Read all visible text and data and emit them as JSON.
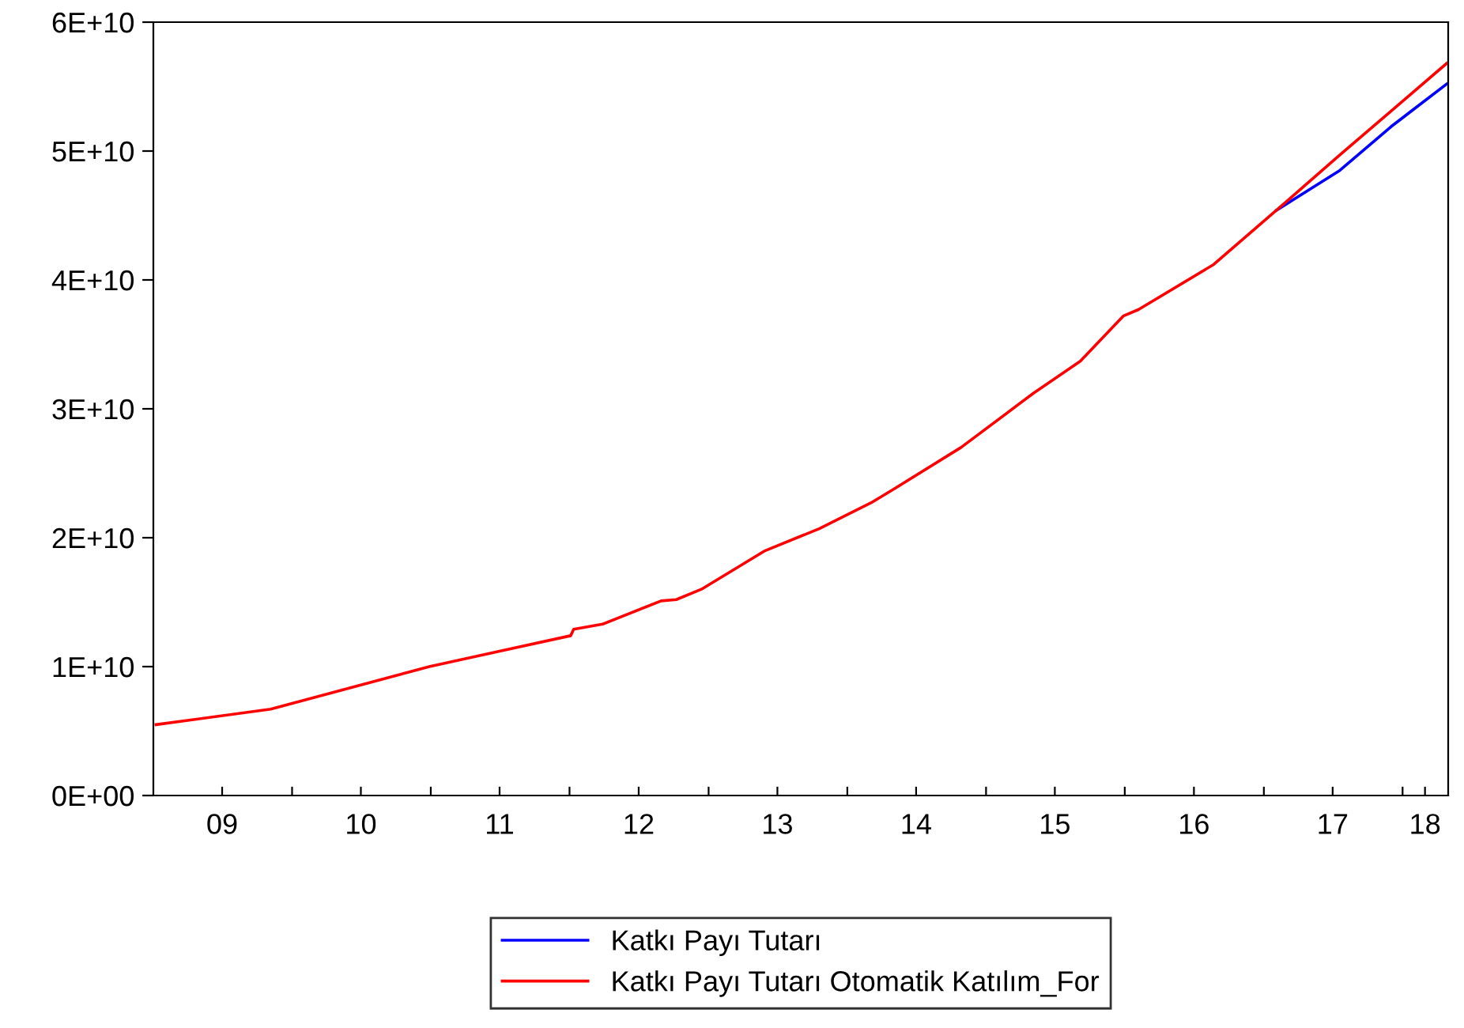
{
  "chart_data": {
    "type": "line",
    "x": [
      "2009-01-08",
      "2009-11-06",
      "2010-12-28",
      "2011-07-01",
      "2012-01-04",
      "2012-01-12",
      "2012-03-28",
      "2012-08-29",
      "2012-10-08",
      "2012-12-13",
      "2013-05-30",
      "2013-10-19",
      "2014-03-04",
      "2014-05-05",
      "2014-10-27",
      "2015-05-05",
      "2015-09-06",
      "2015-12-28",
      "2016-02-06",
      "2016-08-22",
      "2017-02-03",
      "2017-07-20",
      "2017-12-02",
      "2018-04-27"
    ],
    "series": [
      {
        "name": "Katkı Payı Tutarı",
        "color": "#0000ff",
        "values": [
          null,
          null,
          null,
          null,
          null,
          null,
          null,
          null,
          null,
          null,
          null,
          null,
          null,
          null,
          null,
          null,
          null,
          null,
          null,
          null,
          45400000000.0,
          48500000000.0,
          51900000000.0,
          55200000000.0
        ]
      },
      {
        "name": "Katkı Payı Tutarı Otomatik Katılım_For",
        "color": "#ff0000",
        "values": [
          5500000000.0,
          6700000000.0,
          10000000000.0,
          11200000000.0,
          12400000000.0,
          12900000000.0,
          13300000000.0,
          15100000000.0,
          15200000000.0,
          16000000000.0,
          19000000000.0,
          20700000000.0,
          22700000000.0,
          23800000000.0,
          27000000000.0,
          31200000000.0,
          33700000000.0,
          37200000000.0,
          37700000000.0,
          41200000000.0,
          45400000000.0,
          49700000000.0,
          53100000000.0,
          56800000000.0
        ]
      }
    ],
    "xlim": [
      "2009-01-01",
      "2018-05-01"
    ],
    "xticks": [
      {
        "value": "2009-07-01",
        "label": "09"
      },
      {
        "value": "2010-01-01",
        "label": null
      },
      {
        "value": "2010-07-01",
        "label": "10"
      },
      {
        "value": "2011-01-01",
        "label": null
      },
      {
        "value": "2011-07-01",
        "label": "11"
      },
      {
        "value": "2012-01-01",
        "label": null
      },
      {
        "value": "2012-07-01",
        "label": "12"
      },
      {
        "value": "2013-01-01",
        "label": null
      },
      {
        "value": "2013-07-01",
        "label": "13"
      },
      {
        "value": "2014-01-01",
        "label": null
      },
      {
        "value": "2014-07-01",
        "label": "14"
      },
      {
        "value": "2015-01-01",
        "label": null
      },
      {
        "value": "2015-07-01",
        "label": "15"
      },
      {
        "value": "2016-01-01",
        "label": null
      },
      {
        "value": "2016-07-01",
        "label": "16"
      },
      {
        "value": "2017-01-01",
        "label": null
      },
      {
        "value": "2017-07-01",
        "label": "17"
      },
      {
        "value": "2018-01-01",
        "label": null
      },
      {
        "value": "2018-03-01",
        "label": "18"
      }
    ],
    "ylim": [
      0,
      60000000000.0
    ],
    "yticks": [
      {
        "value": 0,
        "label": "0E+00"
      },
      {
        "value": 10000000000.0,
        "label": "1E+10"
      },
      {
        "value": 20000000000.0,
        "label": "2E+10"
      },
      {
        "value": 30000000000.0,
        "label": "3E+10"
      },
      {
        "value": 40000000000.0,
        "label": "4E+10"
      },
      {
        "value": 50000000000.0,
        "label": "5E+10"
      },
      {
        "value": 60000000000.0,
        "label": "6E+10"
      }
    ],
    "grid": false,
    "legend": "bottom",
    "line_style": "solid",
    "marker": "none"
  }
}
